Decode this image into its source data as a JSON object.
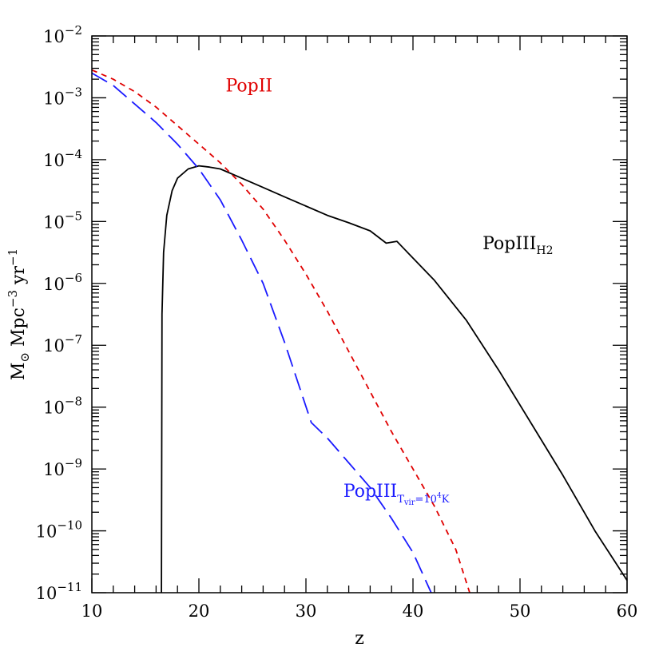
{
  "chart_data": {
    "type": "line",
    "xlabel": "z",
    "ylabel": {
      "prefix": "M",
      "sub": "⊙",
      "mid": " Mpc",
      "sup1": "−3",
      "mid2": " yr",
      "sup2": "−1"
    },
    "xlim": [
      10,
      60
    ],
    "ylim_log10": [
      -11,
      -2
    ],
    "yscale": "log",
    "x_ticks": [
      10,
      20,
      30,
      40,
      50,
      60
    ],
    "y_ticks": [
      {
        "base": "10",
        "exp": "−2",
        "v": -2
      },
      {
        "base": "10",
        "exp": "−3",
        "v": -3
      },
      {
        "base": "10",
        "exp": "−4",
        "v": -4
      },
      {
        "base": "10",
        "exp": "−5",
        "v": -5
      },
      {
        "base": "10",
        "exp": "−6",
        "v": -6
      },
      {
        "base": "10",
        "exp": "−7",
        "v": -7
      },
      {
        "base": "10",
        "exp": "−8",
        "v": -8
      },
      {
        "base": "10",
        "exp": "−9",
        "v": -9
      },
      {
        "base": "10",
        "exp": "−10",
        "v": -10
      },
      {
        "base": "10",
        "exp": "−11",
        "v": -11
      }
    ],
    "series": [
      {
        "id": "popiii-h2",
        "color": "#000000",
        "dash": "solid",
        "points_log10": [
          [
            16.5,
            -11.0
          ],
          [
            16.55,
            -6.5
          ],
          [
            16.7,
            -5.5
          ],
          [
            17.0,
            -4.9
          ],
          [
            17.5,
            -4.5
          ],
          [
            18.0,
            -4.3
          ],
          [
            19.0,
            -4.15
          ],
          [
            20.0,
            -4.1
          ],
          [
            21.0,
            -4.12
          ],
          [
            22.0,
            -4.15
          ],
          [
            24.0,
            -4.3
          ],
          [
            26.0,
            -4.45
          ],
          [
            28.0,
            -4.6
          ],
          [
            30.0,
            -4.75
          ],
          [
            32.0,
            -4.9
          ],
          [
            34.0,
            -5.02
          ],
          [
            36.0,
            -5.15
          ],
          [
            37.5,
            -5.35
          ],
          [
            38.5,
            -5.32
          ],
          [
            39.5,
            -5.5
          ],
          [
            42.0,
            -5.95
          ],
          [
            45.0,
            -6.6
          ],
          [
            48.0,
            -7.4
          ],
          [
            51.0,
            -8.25
          ],
          [
            54.0,
            -9.1
          ],
          [
            57.0,
            -10.0
          ],
          [
            60.0,
            -10.8
          ]
        ]
      },
      {
        "id": "popii",
        "color": "#e00000",
        "dash": "short",
        "points_log10": [
          [
            10.0,
            -2.55
          ],
          [
            12.0,
            -2.7
          ],
          [
            14.0,
            -2.9
          ],
          [
            16.0,
            -3.15
          ],
          [
            18.0,
            -3.45
          ],
          [
            20.0,
            -3.75
          ],
          [
            22.0,
            -4.05
          ],
          [
            24.0,
            -4.4
          ],
          [
            26.0,
            -4.8
          ],
          [
            28.0,
            -5.3
          ],
          [
            30.0,
            -5.85
          ],
          [
            32.0,
            -6.45
          ],
          [
            34.0,
            -7.1
          ],
          [
            36.0,
            -7.75
          ],
          [
            38.0,
            -8.4
          ],
          [
            40.0,
            -9.0
          ],
          [
            42.0,
            -9.6
          ],
          [
            44.0,
            -10.3
          ],
          [
            45.3,
            -11.0
          ]
        ]
      },
      {
        "id": "popiii-tvir",
        "color": "#1a1aff",
        "dash": "long",
        "points_log10": [
          [
            10.0,
            -2.6
          ],
          [
            12.0,
            -2.8
          ],
          [
            14.0,
            -3.1
          ],
          [
            16.0,
            -3.4
          ],
          [
            18.0,
            -3.75
          ],
          [
            20.0,
            -4.15
          ],
          [
            22.0,
            -4.65
          ],
          [
            24.0,
            -5.3
          ],
          [
            26.0,
            -6.0
          ],
          [
            28.0,
            -6.95
          ],
          [
            30.5,
            -8.25
          ],
          [
            32.0,
            -8.5
          ],
          [
            34.0,
            -8.9
          ],
          [
            36.0,
            -9.3
          ],
          [
            38.0,
            -9.8
          ],
          [
            40.0,
            -10.35
          ],
          [
            41.7,
            -11.0
          ]
        ]
      }
    ],
    "annotations": [
      {
        "id": "label-popii",
        "text": "PopII",
        "sub": "",
        "color": "#e00000",
        "x": 22.5,
        "y": -2.9
      },
      {
        "id": "label-popiii-h2",
        "text": "PopIII",
        "sub": "H2",
        "color": "#000000",
        "x": 46.5,
        "y": -5.45
      },
      {
        "id": "label-popiii-tvir",
        "text": "PopIII",
        "sub": "T",
        "sub2": "vir",
        "sub3": "=10",
        "sup3": "4",
        "sub4": "K",
        "color": "#1a1aff",
        "x": 33.5,
        "y": -9.45
      }
    ]
  }
}
